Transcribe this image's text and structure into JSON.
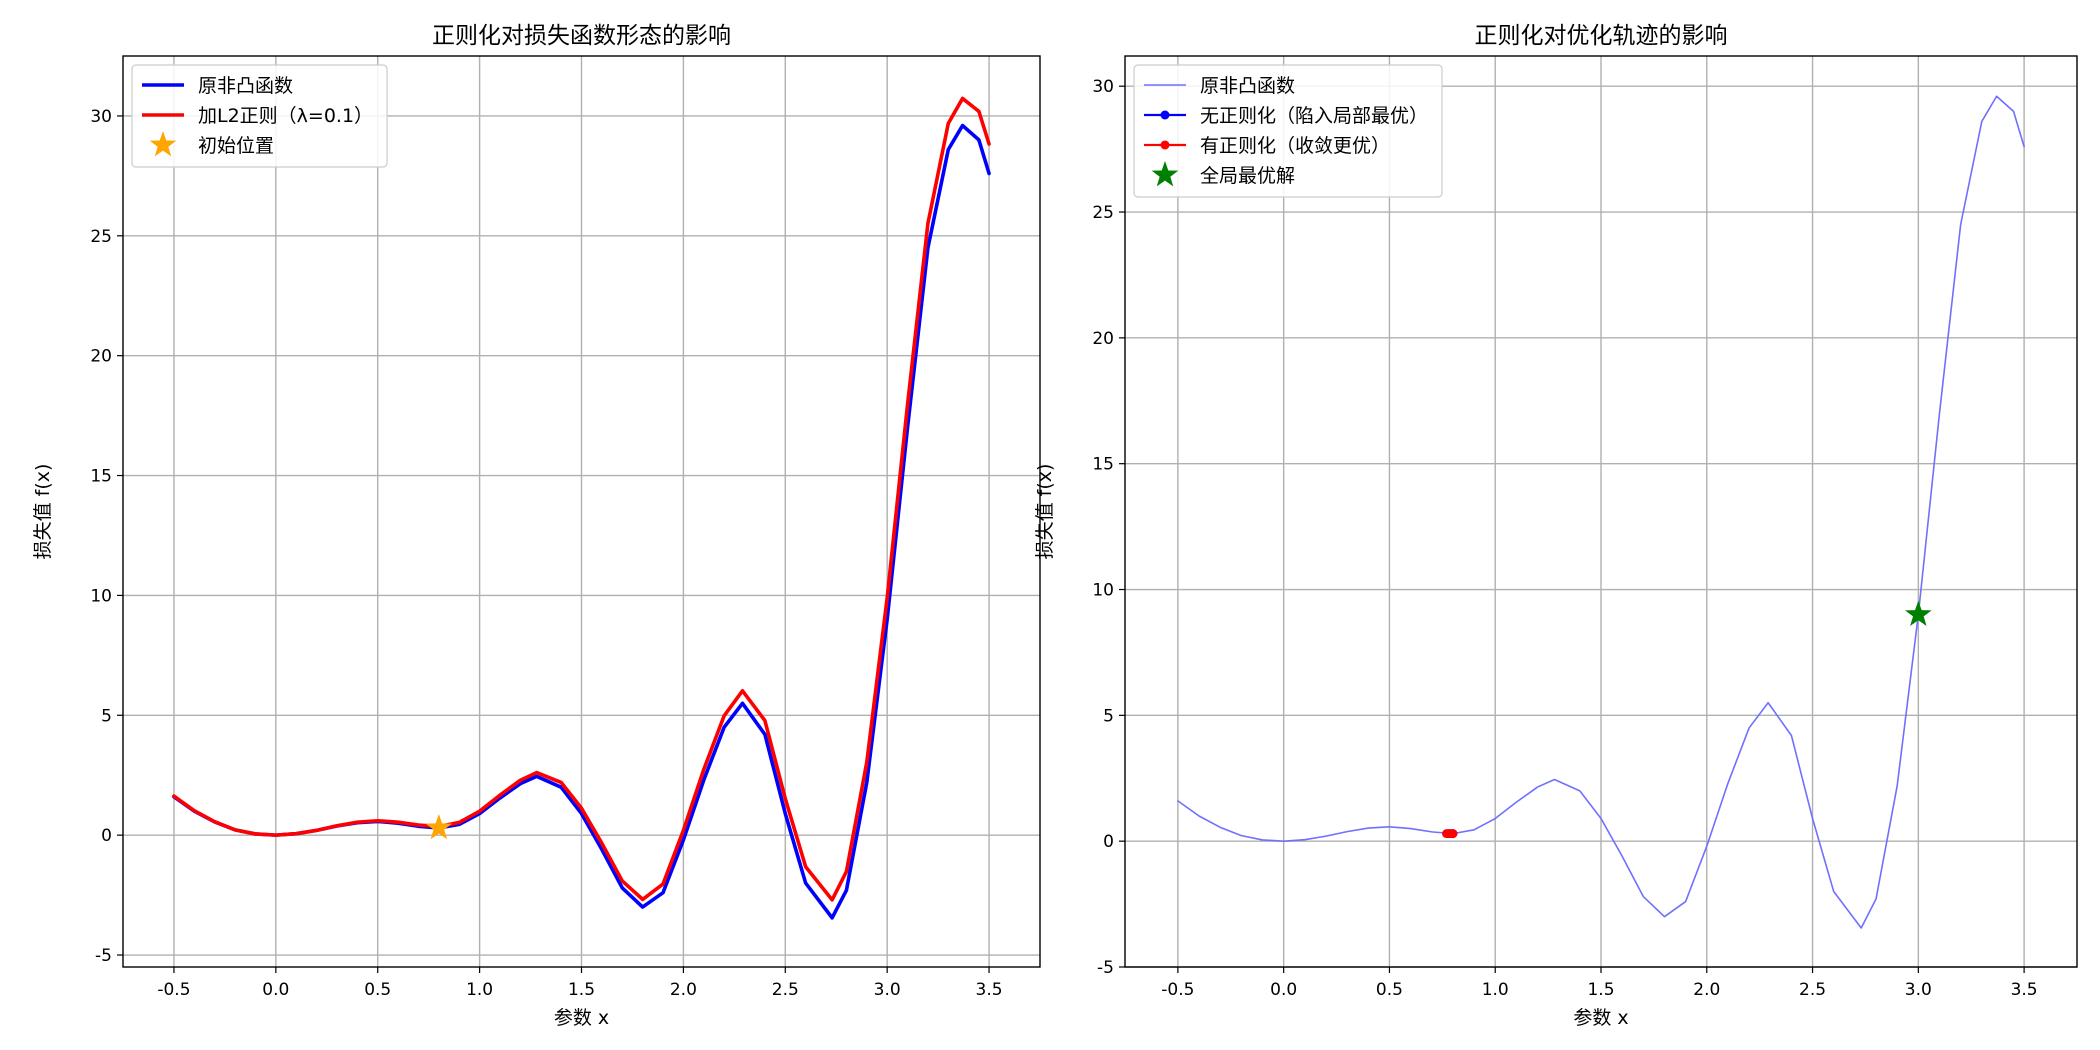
{
  "chart_data": [
    {
      "type": "line",
      "title": "正则化对损失函数形态的影响",
      "xlabel": "参数 x",
      "ylabel": "损失值 f(x)",
      "xlim": [
        -0.75,
        3.75
      ],
      "ylim": [
        -5.5,
        32.5
      ],
      "xticks": [
        -0.5,
        0.0,
        0.5,
        1.0,
        1.5,
        2.0,
        2.5,
        3.0,
        3.5
      ],
      "xtick_labels": [
        "-0.5",
        "0.0",
        "0.5",
        "1.0",
        "1.5",
        "2.0",
        "2.5",
        "3.0",
        "3.5"
      ],
      "yticks": [
        -5,
        0,
        5,
        10,
        15,
        20,
        25,
        30
      ],
      "ytick_labels": [
        "-5",
        "0",
        "5",
        "10",
        "15",
        "20",
        "25",
        "30"
      ],
      "grid": true,
      "legend_position": "upper-left",
      "series": [
        {
          "name": "原非凸函数",
          "color": "#0000ff",
          "kind": "line",
          "x": [
            -0.5,
            -0.4,
            -0.3,
            -0.2,
            -0.1,
            0.0,
            0.1,
            0.2,
            0.3,
            0.4,
            0.5,
            0.6,
            0.7,
            0.8,
            0.9,
            1.0,
            1.1,
            1.2,
            1.28,
            1.4,
            1.5,
            1.6,
            1.7,
            1.8,
            1.9,
            2.0,
            2.1,
            2.2,
            2.29,
            2.4,
            2.5,
            2.6,
            2.73,
            2.8,
            2.9,
            3.0,
            3.1,
            3.2,
            3.3,
            3.37,
            3.45,
            3.5
          ],
          "y": [
            1.6,
            1.0,
            0.55,
            0.22,
            0.05,
            0.0,
            0.06,
            0.2,
            0.38,
            0.52,
            0.57,
            0.5,
            0.37,
            0.3,
            0.45,
            0.9,
            1.55,
            2.15,
            2.45,
            2.0,
            0.9,
            -0.6,
            -2.2,
            -3.0,
            -2.4,
            -0.2,
            2.3,
            4.5,
            5.5,
            4.2,
            0.9,
            -2.0,
            -3.45,
            -2.3,
            2.2,
            9.0,
            17.0,
            24.5,
            28.6,
            29.6,
            29.0,
            27.6
          ]
        },
        {
          "name": "加L2正则（λ=0.1）",
          "color": "#ff0000",
          "kind": "line",
          "x": [
            -0.5,
            -0.4,
            -0.3,
            -0.2,
            -0.1,
            0.0,
            0.1,
            0.2,
            0.3,
            0.4,
            0.5,
            0.6,
            0.7,
            0.8,
            0.9,
            1.0,
            1.1,
            1.2,
            1.28,
            1.4,
            1.5,
            1.6,
            1.7,
            1.8,
            1.9,
            2.0,
            2.1,
            2.2,
            2.29,
            2.4,
            2.5,
            2.6,
            2.73,
            2.8,
            2.9,
            3.0,
            3.1,
            3.2,
            3.3,
            3.37,
            3.45,
            3.5
          ],
          "y": [
            1.63,
            1.02,
            0.56,
            0.22,
            0.05,
            0.0,
            0.06,
            0.2,
            0.39,
            0.54,
            0.6,
            0.54,
            0.42,
            0.36,
            0.53,
            1.0,
            1.67,
            2.29,
            2.61,
            2.2,
            1.12,
            -0.34,
            -1.91,
            -2.68,
            -2.04,
            0.2,
            2.74,
            4.98,
            6.02,
            4.78,
            1.52,
            -1.32,
            -2.7,
            -1.52,
            3.04,
            9.9,
            17.96,
            25.52,
            29.69,
            30.73,
            30.19,
            28.83
          ]
        },
        {
          "name": "初始位置",
          "color": "#ffa500",
          "kind": "star",
          "x": [
            0.8
          ],
          "y": [
            0.3
          ]
        }
      ]
    },
    {
      "type": "line",
      "title": "正则化对优化轨迹的影响",
      "xlabel": "参数 x",
      "ylabel": "损失值 f(x)",
      "xlim": [
        -0.75,
        3.75
      ],
      "ylim": [
        -5.0,
        31.2
      ],
      "xticks": [
        -0.5,
        0.0,
        0.5,
        1.0,
        1.5,
        2.0,
        2.5,
        3.0,
        3.5
      ],
      "xtick_labels": [
        "-0.5",
        "0.0",
        "0.5",
        "1.0",
        "1.5",
        "2.0",
        "2.5",
        "3.0",
        "3.5"
      ],
      "yticks": [
        -5,
        0,
        5,
        10,
        15,
        20,
        25,
        30
      ],
      "ytick_labels": [
        "-5",
        "0",
        "5",
        "10",
        "15",
        "20",
        "25",
        "30"
      ],
      "grid": true,
      "legend_position": "upper-left",
      "series": [
        {
          "name": "原非凸函数",
          "color": "#7070ff",
          "kind": "thin-line",
          "x": [
            -0.5,
            -0.4,
            -0.3,
            -0.2,
            -0.1,
            0.0,
            0.1,
            0.2,
            0.3,
            0.4,
            0.5,
            0.6,
            0.7,
            0.8,
            0.9,
            1.0,
            1.1,
            1.2,
            1.28,
            1.4,
            1.5,
            1.6,
            1.7,
            1.8,
            1.9,
            2.0,
            2.1,
            2.2,
            2.29,
            2.4,
            2.5,
            2.6,
            2.73,
            2.8,
            2.9,
            3.0,
            3.1,
            3.2,
            3.3,
            3.37,
            3.45,
            3.5
          ],
          "y": [
            1.6,
            1.0,
            0.55,
            0.22,
            0.05,
            0.0,
            0.06,
            0.2,
            0.38,
            0.52,
            0.57,
            0.5,
            0.37,
            0.3,
            0.45,
            0.9,
            1.55,
            2.15,
            2.45,
            2.0,
            0.9,
            -0.6,
            -2.2,
            -3.0,
            -2.4,
            -0.2,
            2.3,
            4.5,
            5.5,
            4.2,
            0.9,
            -2.0,
            -3.45,
            -2.3,
            2.2,
            9.0,
            17.0,
            24.5,
            28.6,
            29.6,
            29.0,
            27.6
          ]
        },
        {
          "name": "无正则化（陷入局部最优）",
          "color": "#0000ff",
          "kind": "line-markers",
          "x": [
            0.78,
            0.79,
            0.8
          ],
          "y": [
            0.3,
            0.3,
            0.3
          ]
        },
        {
          "name": "有正则化（收敛更优）",
          "color": "#ff0000",
          "kind": "line-markers",
          "x": [
            0.77,
            0.785,
            0.8
          ],
          "y": [
            0.3,
            0.3,
            0.3
          ]
        },
        {
          "name": "全局最优解",
          "color": "#008000",
          "kind": "star",
          "x": [
            3.0
          ],
          "y": [
            9.0
          ]
        }
      ]
    }
  ]
}
